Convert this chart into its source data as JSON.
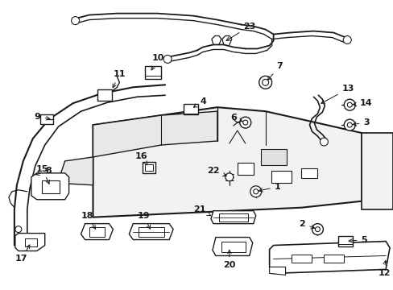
{
  "bg_color": "#ffffff",
  "line_color": "#1a1a1a",
  "lw": 1.0,
  "fs": 8,
  "alw": 0.7,
  "figw": 4.89,
  "figh": 3.6,
  "dpi": 100
}
